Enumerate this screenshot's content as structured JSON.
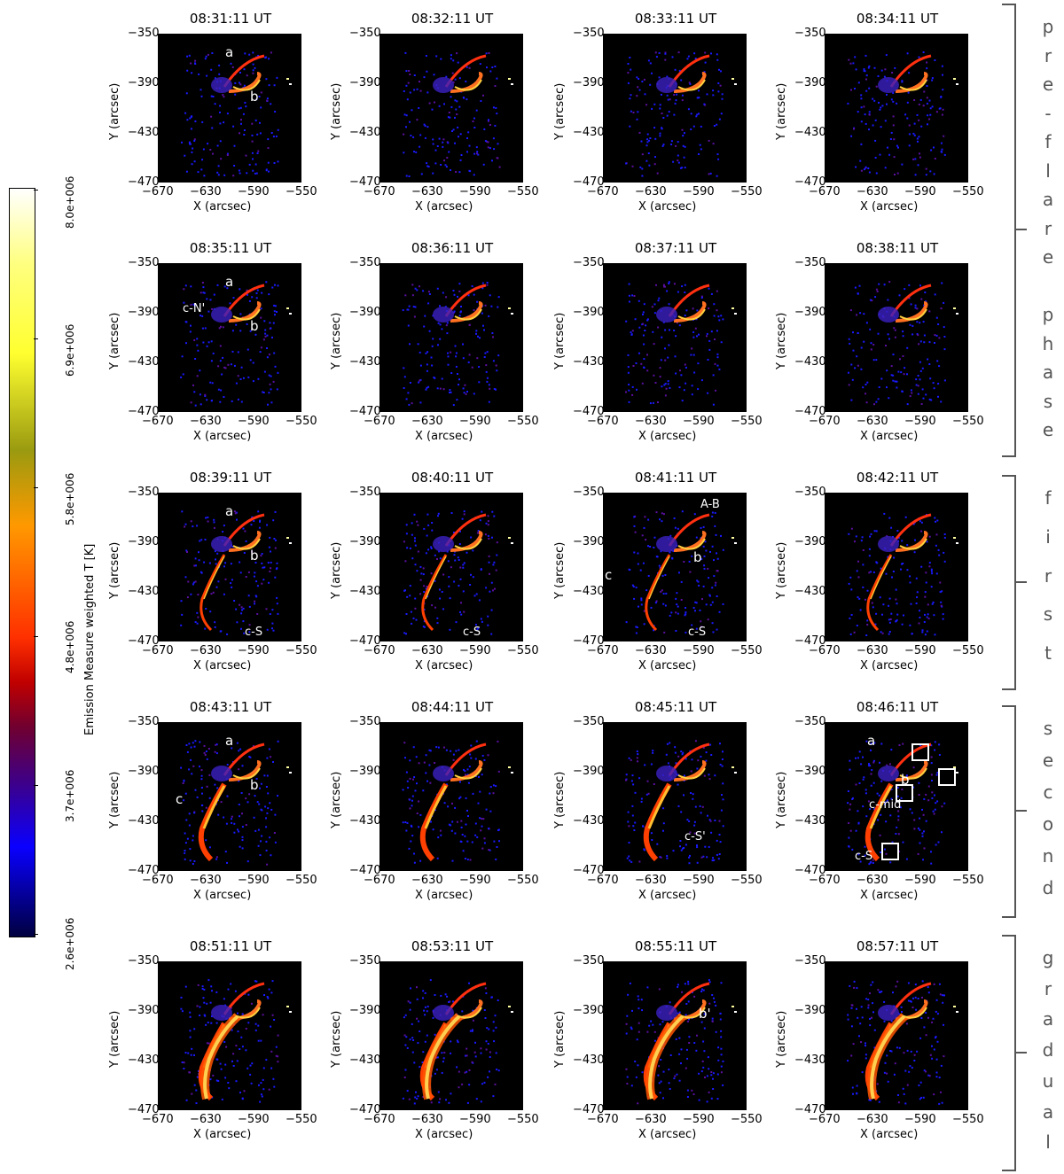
{
  "colorbar": {
    "label": "Emission Measure weighted T [K]",
    "ticks": [
      "8.0e+006",
      "6.9e+006",
      "5.8e+006",
      "4.8e+006",
      "3.7e+006",
      "2.6e+006"
    ]
  },
  "axes": {
    "xlabel": "X (arcsec)",
    "ylabel": "Y (arcsec)",
    "xticks": [
      "−670",
      "−630",
      "−590",
      "−550"
    ],
    "yticks": [
      "−350",
      "−390",
      "−430",
      "−470"
    ]
  },
  "phases": [
    {
      "label": "pre-flare phase",
      "letters": [
        "p",
        "r",
        "e",
        "-",
        "f",
        "l",
        "a",
        "r",
        "e",
        "",
        "p",
        "h",
        "a",
        "s",
        "e"
      ]
    },
    {
      "label": "first",
      "letters": [
        "f",
        "i",
        "r",
        "s",
        "t"
      ]
    },
    {
      "label": "second",
      "letters": [
        "s",
        "e",
        "c",
        "o",
        "n",
        "d"
      ]
    },
    {
      "label": "gradual",
      "letters": [
        "g",
        "r",
        "a",
        "d",
        "u",
        "a",
        "l"
      ]
    }
  ],
  "panels": [
    {
      "time": "08:31:11 UT",
      "labels": [
        "a",
        "b"
      ]
    },
    {
      "time": "08:32:11 UT",
      "labels": []
    },
    {
      "time": "08:33:11 UT",
      "labels": []
    },
    {
      "time": "08:34:11 UT",
      "labels": []
    },
    {
      "time": "08:35:11 UT",
      "labels": [
        "a",
        "b",
        "c-N'"
      ]
    },
    {
      "time": "08:36:11 UT",
      "labels": []
    },
    {
      "time": "08:37:11 UT",
      "labels": []
    },
    {
      "time": "08:38:11 UT",
      "labels": []
    },
    {
      "time": "08:39:11 UT",
      "labels": [
        "a",
        "b",
        "c-S"
      ]
    },
    {
      "time": "08:40:11 UT",
      "labels": [
        "c-S"
      ]
    },
    {
      "time": "08:41:11 UT",
      "labels": [
        "A-B",
        "b",
        "c",
        "c-S"
      ]
    },
    {
      "time": "08:42:11 UT",
      "labels": []
    },
    {
      "time": "08:43:11 UT",
      "labels": [
        "a",
        "b",
        "c"
      ]
    },
    {
      "time": "08:44:11 UT",
      "labels": []
    },
    {
      "time": "08:45:11 UT",
      "labels": [
        "c-S'"
      ]
    },
    {
      "time": "08:46:11 UT",
      "labels": [
        "a",
        "b",
        "c-mid",
        "c-S"
      ]
    },
    {
      "time": "08:51:11 UT",
      "labels": []
    },
    {
      "time": "08:53:11 UT",
      "labels": []
    },
    {
      "time": "08:55:11 UT",
      "labels": [
        "b'"
      ]
    },
    {
      "time": "08:57:11 UT",
      "labels": []
    }
  ]
}
